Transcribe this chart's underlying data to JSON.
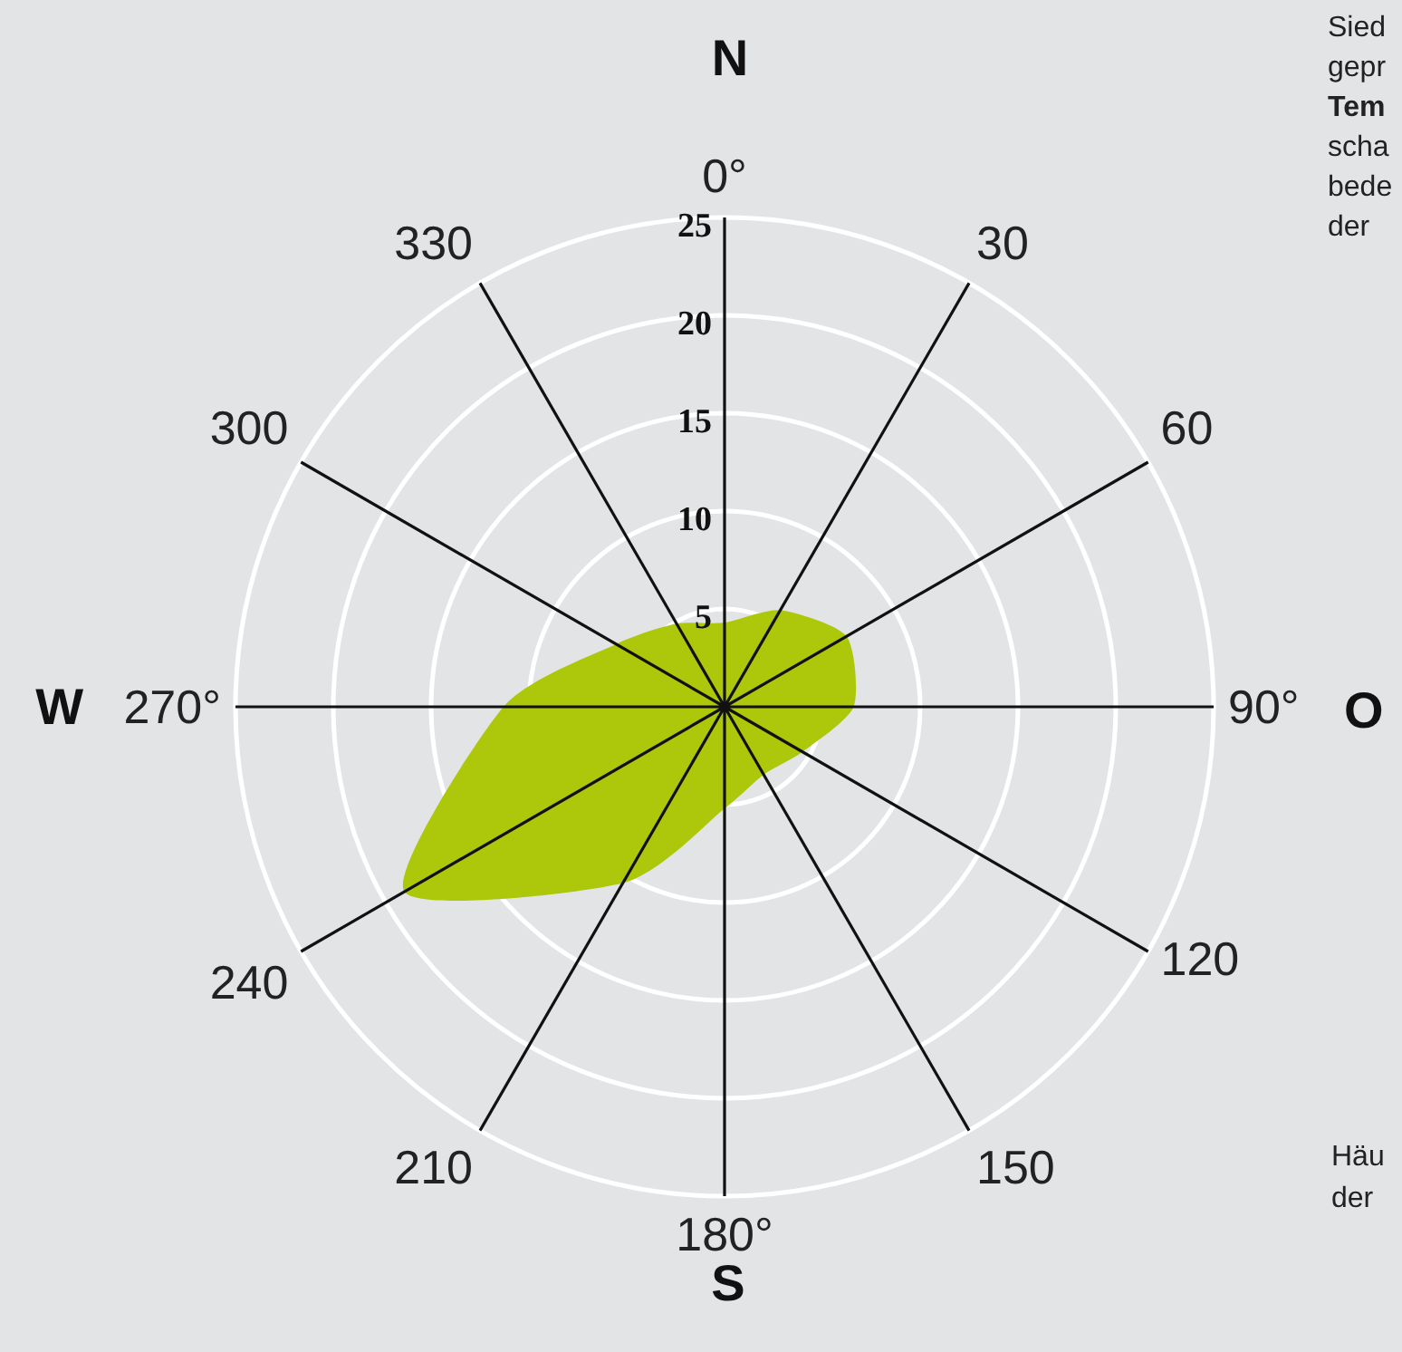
{
  "chart_data": {
    "type": "radar",
    "categories": [
      "0°",
      "30",
      "60",
      "90°",
      "120",
      "150",
      "180°",
      "210",
      "240",
      "270°",
      "300",
      "330"
    ],
    "series": [
      {
        "color": "#adc80b",
        "values": [
          4.3,
          5.7,
          7.2,
          6.6,
          4.6,
          4,
          5.2,
          10.4,
          18.9,
          11.3,
          6.4,
          4.9
        ]
      }
    ],
    "ylim": [
      0,
      25
    ],
    "yticks": [
      5,
      10,
      15,
      20,
      25
    ],
    "grid": true,
    "annotations": [
      "N",
      "O",
      "S",
      "W",
      "Sied",
      "gepr",
      "Tem",
      "scha",
      "bede",
      "der",
      "Häu",
      "der"
    ]
  }
}
